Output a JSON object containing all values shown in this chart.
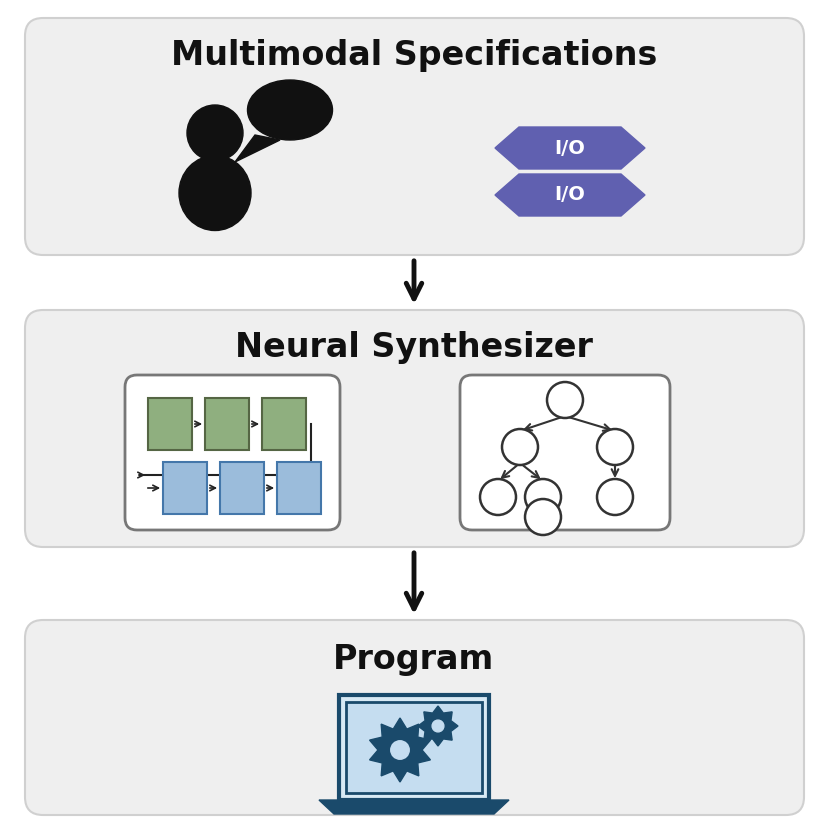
{
  "background_color": "#ffffff",
  "box_bg_color": "#efefef",
  "box_edge_color": "#d0d0d0",
  "title1": "Multimodal Specifications",
  "title2": "Neural Synthesizer",
  "title3": "Program",
  "arrow_color": "#111111",
  "purple_color": "#6060b0",
  "green_color": "#8faf7f",
  "green_edge": "#556644",
  "blue_color": "#9bbcdb",
  "blue_edge": "#4477aa",
  "dark_blue": "#1a4a6b",
  "tree_color": "#333333",
  "nn_box_edge": "#777777",
  "person_color": "#111111",
  "box_bg_inner": "#f8f8f8"
}
